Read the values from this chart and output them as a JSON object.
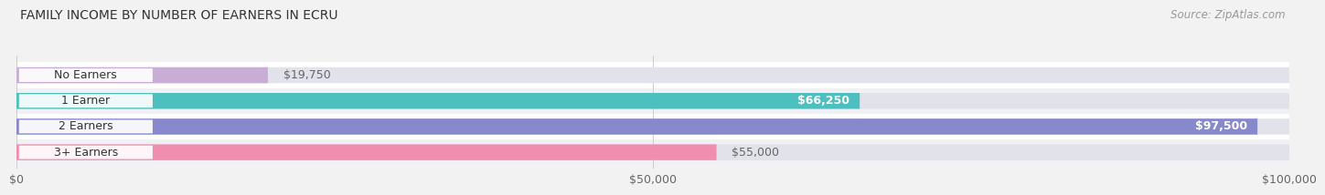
{
  "title": "FAMILY INCOME BY NUMBER OF EARNERS IN ECRU",
  "source": "Source: ZipAtlas.com",
  "categories": [
    "No Earners",
    "1 Earner",
    "2 Earners",
    "3+ Earners"
  ],
  "values": [
    19750,
    66250,
    97500,
    55000
  ],
  "bar_colors": [
    "#c8aed4",
    "#4dbfbf",
    "#8888cc",
    "#f08eaf"
  ],
  "bar_labels": [
    "$19,750",
    "$66,250",
    "$97,500",
    "$55,000"
  ],
  "label_inside": [
    false,
    true,
    true,
    false
  ],
  "xlim": [
    0,
    100000
  ],
  "xticks": [
    0,
    50000,
    100000
  ],
  "xtick_labels": [
    "$0",
    "$50,000",
    "$100,000"
  ],
  "bg_color": "#f2f2f2",
  "bar_bg_color": "#e2e2ea",
  "row_bg_colors": [
    "#ffffff",
    "#f0f0f5",
    "#ffffff",
    "#f0f0f5"
  ],
  "title_fontsize": 10,
  "source_fontsize": 8.5,
  "tick_fontsize": 9,
  "label_fontsize": 9,
  "cat_fontsize": 9
}
